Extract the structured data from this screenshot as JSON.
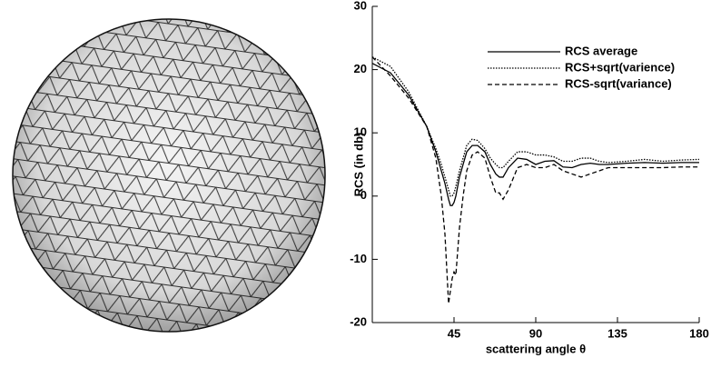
{
  "chart_data": {
    "type": "line",
    "xlabel": "scattering angle θ",
    "ylabel": "RCS (in db)",
    "xlim": [
      0,
      180
    ],
    "xticks": [
      45,
      90,
      135,
      180
    ],
    "ylim": [
      -20,
      30
    ],
    "yticks": [
      -20,
      -10,
      0,
      10,
      20,
      30
    ],
    "grid": false,
    "legend": "top-right",
    "x": [
      0,
      10,
      20,
      30,
      35,
      38,
      40,
      42,
      43,
      44,
      45,
      46,
      48,
      50,
      52,
      55,
      58,
      62,
      65,
      68,
      70,
      72,
      75,
      80,
      85,
      90,
      95,
      100,
      105,
      110,
      115,
      120,
      125,
      130,
      140,
      150,
      160,
      170,
      180
    ],
    "series": [
      {
        "name": "RCS average",
        "color": "#000000",
        "dash": "solid",
        "values": [
          21,
          19.5,
          16,
          11,
          7,
          4,
          2,
          -0.5,
          -1.5,
          -1.5,
          -1,
          0,
          3,
          5,
          7,
          8,
          8,
          7,
          5,
          3.5,
          3,
          3,
          4.5,
          6,
          5.8,
          5,
          5.5,
          5.6,
          4.6,
          4.5,
          5,
          5.2,
          5,
          5,
          5.2,
          5.3,
          5.2,
          5.3,
          5.3
        ]
      },
      {
        "name": "RCS+sqrt(varience)",
        "color": "#000000",
        "dash": "dotted",
        "values": [
          22,
          20.5,
          16.5,
          11,
          7.5,
          5,
          3,
          1,
          0,
          0,
          0.5,
          1.5,
          4,
          6,
          8,
          9,
          8.8,
          7.5,
          6,
          5,
          4.5,
          4.5,
          5.5,
          7,
          7,
          6.5,
          6.5,
          6.2,
          5.5,
          5.5,
          6,
          6,
          5.5,
          5.3,
          5.5,
          5.8,
          5.5,
          5.7,
          5.8
        ]
      },
      {
        "name": "RCS-sqrt(variance)",
        "color": "#000000",
        "dash": "dashed",
        "values": [
          22,
          19,
          15.5,
          11,
          6,
          0,
          -6,
          -17,
          -15,
          -13,
          -12,
          -12.5,
          -5,
          0,
          4,
          6.5,
          7,
          6,
          3,
          0.5,
          0.5,
          -0.5,
          1,
          4.5,
          5,
          4.5,
          4.5,
          5,
          4,
          3.5,
          3,
          3.5,
          4,
          4.5,
          4.5,
          4.5,
          4.5,
          4.6,
          4.6
        ]
      }
    ]
  }
}
